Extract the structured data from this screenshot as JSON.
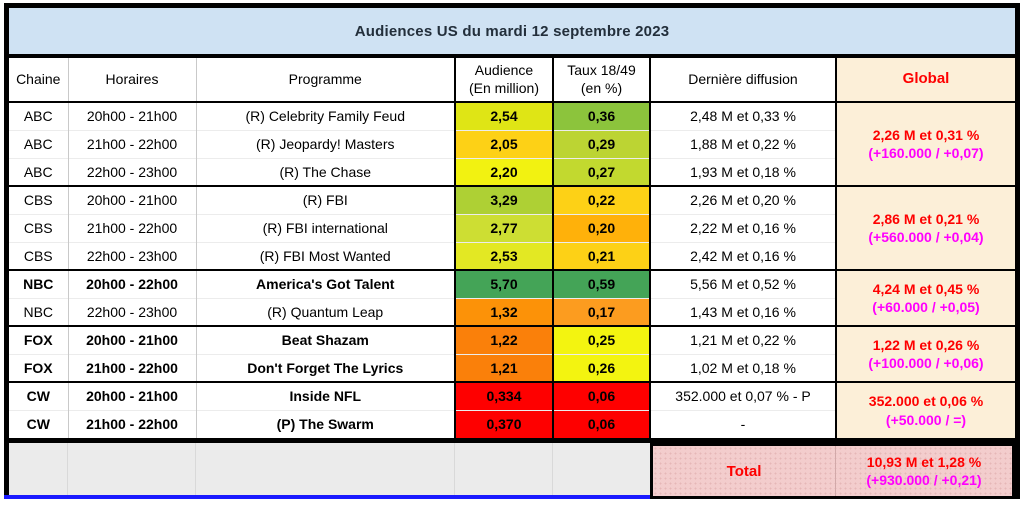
{
  "title": "Audiences US du mardi 12 septembre 2023",
  "header": {
    "chaine": "Chaine",
    "horaires": "Horaires",
    "programme": "Programme",
    "audience_l1": "Audience",
    "audience_l2": "(En million)",
    "taux_l1": "Taux 18/49",
    "taux_l2": "(en %)",
    "derniere": "Dernière diffusion",
    "global": "Global"
  },
  "groups": [
    {
      "channel": "ABC",
      "global": {
        "line1": "2,26 M et 0,31 %",
        "line2": "(+160.000 / +0,07)"
      },
      "rows": [
        {
          "time": "20h00 - 21h00",
          "programme": "(R) Celebrity Family Feud",
          "audience": "2,54",
          "audience_bg": "#dfe515",
          "taux": "0,36",
          "taux_bg": "#8cc43c",
          "last": "2,48 M et 0,33 %",
          "bold": false
        },
        {
          "time": "21h00 - 22h00",
          "programme": "(R) Jeopardy! Masters",
          "audience": "2,05",
          "audience_bg": "#fdd116",
          "taux": "0,29",
          "taux_bg": "#bcd433",
          "last": "1,88 M et 0,22 %",
          "bold": false
        },
        {
          "time": "22h00 - 23h00",
          "programme": "(R) The Chase",
          "audience": "2,20",
          "audience_bg": "#f2f211",
          "taux": "0,27",
          "taux_bg": "#c2d92f",
          "last": "1,93 M et 0,18 %",
          "bold": false
        }
      ]
    },
    {
      "channel": "CBS",
      "global": {
        "line1": "2,86 M et 0,21 %",
        "line2": "(+560.000 / +0,04)"
      },
      "rows": [
        {
          "time": "20h00 - 21h00",
          "programme": "(R) FBI",
          "audience": "3,29",
          "audience_bg": "#aed034",
          "taux": "0,22",
          "taux_bg": "#fdd116",
          "last": "2,26 M et 0,20 %",
          "bold": false
        },
        {
          "time": "21h00 - 22h00",
          "programme": "(R) FBI international",
          "audience": "2,77",
          "audience_bg": "#cdde33",
          "taux": "0,20",
          "taux_bg": "#ffb10a",
          "last": "2,22 M et 0,16 %",
          "bold": false
        },
        {
          "time": "22h00 - 23h00",
          "programme": "(R) FBI Most Wanted",
          "audience": "2,53",
          "audience_bg": "#e3e823",
          "taux": "0,21",
          "taux_bg": "#fdd116",
          "last": "2,42 M et 0,16 %",
          "bold": false
        }
      ]
    },
    {
      "channel": "NBC",
      "global": {
        "line1": "4,24 M et 0,45 %",
        "line2": "(+60.000 / +0,05)"
      },
      "rows": [
        {
          "time": "20h00 - 22h00",
          "programme": "America's Got Talent",
          "audience": "5,70",
          "audience_bg": "#44a457",
          "taux": "0,59",
          "taux_bg": "#44a457",
          "last": "5,56 M et 0,52 %",
          "bold": true
        },
        {
          "time": "22h00 - 23h00",
          "programme": "(R) Quantum Leap",
          "audience": "1,32",
          "audience_bg": "#fc9208",
          "taux": "0,17",
          "taux_bg": "#fc9c1f",
          "last": "1,43 M et 0,16 %",
          "bold": false
        }
      ]
    },
    {
      "channel": "FOX",
      "global": {
        "line1": "1,22 M et 0,26 %",
        "line2": "(+100.000 / +0,06)"
      },
      "rows": [
        {
          "time": "20h00 - 21h00",
          "programme": "Beat Shazam",
          "audience": "1,22",
          "audience_bg": "#fa800a",
          "taux": "0,25",
          "taux_bg": "#f3f410",
          "last": "1,21 M et 0,22 %",
          "bold": true
        },
        {
          "time": "21h00 - 22h00",
          "programme": "Don't Forget The Lyrics",
          "audience": "1,21",
          "audience_bg": "#fa800a",
          "taux": "0,26",
          "taux_bg": "#f3f410",
          "last": "1,02 M et 0,18 %",
          "bold": true
        }
      ]
    },
    {
      "channel": "CW",
      "global": {
        "line1": "352.000 et 0,06 %",
        "line2": "(+50.000 / =)"
      },
      "rows": [
        {
          "time": "20h00 - 21h00",
          "programme": "Inside NFL",
          "audience": "0,334",
          "audience_bg": "#fe0000",
          "taux": "0,06",
          "taux_bg": "#fe0000",
          "last": "352.000 et 0,07 % - P",
          "bold": true
        },
        {
          "time": "21h00 - 22h00",
          "programme": "(P) The Swarm",
          "audience": "0,370",
          "audience_bg": "#fe0000",
          "taux": "0,06",
          "taux_bg": "#fe0000",
          "last": "-",
          "bold": true
        }
      ]
    }
  ],
  "total": {
    "label": "Total",
    "line1": "10,93 M et 1,28 %",
    "line2": "(+930.000 / +0,21)"
  },
  "colors": {
    "title_bg": "#cfe2f3",
    "title_text": "#232f3b",
    "global_bg": "#fcefd8",
    "global_text": "#fe0000",
    "global_sub_text": "#ff00fe",
    "total_bg": "#f3cdcd",
    "grey_strip": "#ebebeb",
    "blue_line": "#1a1aff"
  }
}
